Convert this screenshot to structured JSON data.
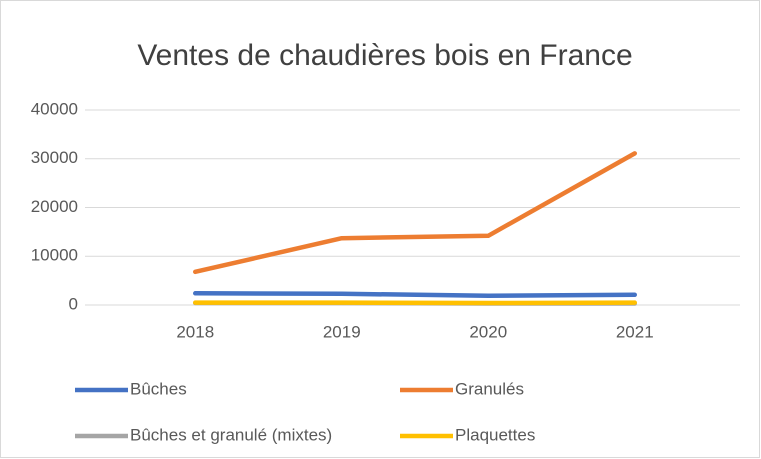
{
  "chart_data": {
    "type": "line",
    "title": "Ventes de chaudières bois en France",
    "categories": [
      "2018",
      "2019",
      "2020",
      "2021"
    ],
    "series": [
      {
        "name": "Bûches",
        "color": "#4472c4",
        "values": [
          2400,
          2300,
          1900,
          2100
        ]
      },
      {
        "name": "Granulés",
        "color": "#ed7d31",
        "values": [
          6800,
          13700,
          14200,
          31100
        ]
      },
      {
        "name": "Bûches et granulé (mixtes)",
        "color": "#a5a5a5",
        "values": [
          400,
          400,
          300,
          300
        ]
      },
      {
        "name": "Plaquettes",
        "color": "#ffc000",
        "values": [
          500,
          500,
          400,
          500
        ]
      }
    ],
    "ylim": [
      0,
      40000
    ],
    "yticks": [
      0,
      10000,
      20000,
      30000,
      40000
    ],
    "grid": true,
    "legend": "bottom"
  }
}
